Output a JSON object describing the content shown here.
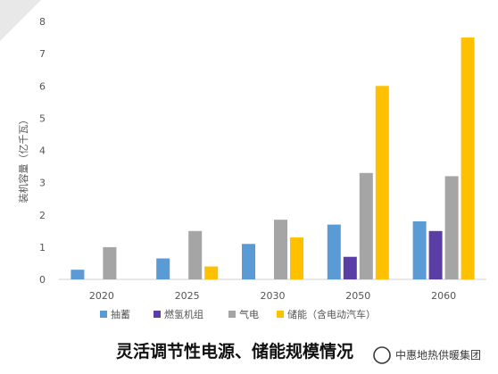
{
  "chart_data": {
    "type": "bar",
    "categories": [
      "2020",
      "2025",
      "2030",
      "2050",
      "2060"
    ],
    "series": [
      {
        "name": "抽蓄",
        "color": "#5b9bd5",
        "values": [
          0.3,
          0.65,
          1.1,
          1.7,
          1.8
        ]
      },
      {
        "name": "燃氢机组",
        "color": "#5b3da6",
        "values": [
          0,
          0,
          0,
          0.7,
          1.5
        ]
      },
      {
        "name": "气电",
        "color": "#a5a5a5",
        "values": [
          1.0,
          1.5,
          1.85,
          3.3,
          3.2
        ]
      },
      {
        "name": "储能（含电动汽车）",
        "color": "#ffc000",
        "values": [
          0,
          0.4,
          1.3,
          6.0,
          7.5
        ]
      }
    ],
    "ylabel": "装机容量（亿千瓦）",
    "ylim": [
      0,
      8
    ],
    "yticks": [
      0,
      1,
      2,
      3,
      4,
      5,
      6,
      7,
      8
    ],
    "grid": false,
    "legend": "bottom"
  },
  "caption": "灵活调节性电源、储能规模情况",
  "watermark": "中惠地热供暖集团"
}
